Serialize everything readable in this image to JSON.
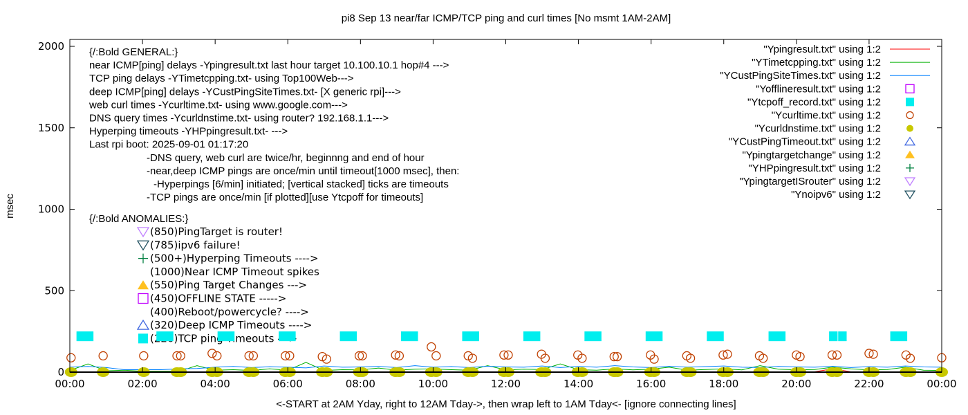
{
  "chart_data": {
    "type": "line",
    "title": "pi8 Sep 13  near/far ICMP/TCP ping and curl times [No msmt 1AM-2AM]",
    "xlabel": "<-START at 2AM Yday, right to 12AM Tday->, then wrap left to 1AM Tday<- [ignore connecting lines]",
    "ylabel": "msec",
    "xlim": [
      "00:00",
      "24:00"
    ],
    "ylim": [
      0,
      2050
    ],
    "x_ticks": [
      "00:00",
      "02:00",
      "04:00",
      "06:00",
      "08:00",
      "10:00",
      "12:00",
      "14:00",
      "16:00",
      "18:00",
      "20:00",
      "22:00",
      "00:00"
    ],
    "y_ticks": [
      0,
      500,
      1000,
      1500,
      2000
    ],
    "grid": false,
    "legend_placement": "top-right",
    "legend": [
      {
        "label": "\"Ypingresult.txt\" using 1:2",
        "style": "line",
        "color": "#ff0000"
      },
      {
        "label": "\"YTimetcpping.txt\" using 1:2",
        "style": "line",
        "color": "#00b000"
      },
      {
        "label": "\"YCustPingSiteTimes.txt\" using 1:2",
        "style": "line",
        "color": "#0080ff"
      },
      {
        "label": "\"Yofflineresult.txt\" using 1:2",
        "style": "open-square",
        "color": "#c000ff"
      },
      {
        "label": "\"Ytcpoff_record.txt\" using 1:2",
        "style": "filled-square",
        "color": "#00eeee"
      },
      {
        "label": "\"Ycurltime.txt\" using 1:2",
        "style": "open-circle",
        "color": "#c04000"
      },
      {
        "label": "\"Ycurldnstime.txt\" using 1:2",
        "style": "filled-circle",
        "color": "#c8c800"
      },
      {
        "label": "\"YCustPingTimeout.txt\" using 1:2",
        "style": "open-triangle-up",
        "color": "#4169e1"
      },
      {
        "label": "\"Ypingtargetchange\" using 1:2",
        "style": "filled-triangle-up",
        "color": "#ffc020"
      },
      {
        "label": "\"YHPpingresult.txt\" using 1:2",
        "style": "plus",
        "color": "#008040"
      },
      {
        "label": "\"YpingtargetISrouter\" using 1:2",
        "style": "open-triangle-down",
        "color": "#c080ff"
      },
      {
        "label": "\"Ynoipv6\" using 1:2",
        "style": "open-triangle-down",
        "color": "#205060"
      }
    ],
    "series": [
      {
        "name": "\"Ypingresult.txt\" using 1:2",
        "interval_minutes": 30,
        "start": "00:00",
        "values": [
          2,
          2,
          2,
          2,
          2,
          2,
          2,
          2,
          2,
          2,
          2,
          2,
          2,
          2,
          2,
          2,
          2,
          2,
          2,
          2,
          2,
          2,
          2,
          2,
          2,
          2,
          2,
          2,
          2,
          2,
          2,
          2,
          2,
          2,
          2,
          2,
          2,
          2,
          2,
          2,
          2,
          2,
          20,
          2,
          2,
          2,
          2,
          2,
          2
        ]
      },
      {
        "name": "\"YTimetcpping.txt\" using 1:2",
        "interval_minutes": 30,
        "start": "00:00",
        "values": [
          10,
          50,
          8,
          12,
          5,
          5,
          5,
          40,
          12,
          15,
          10,
          20,
          12,
          60,
          10,
          15,
          14,
          25,
          12,
          18,
          20,
          15,
          12,
          40,
          14,
          18,
          16,
          50,
          15,
          12,
          20,
          14,
          18,
          30,
          12,
          16,
          20,
          14,
          40,
          18,
          14,
          16,
          30,
          20,
          14,
          16,
          30,
          12,
          10
        ]
      },
      {
        "name": "\"YCustPingSiteTimes.txt\" using 1:2",
        "interval_minutes": 30,
        "start": "00:00",
        "values": [
          30,
          35,
          28,
          15,
          15,
          15,
          20,
          22,
          30,
          35,
          28,
          33,
          30,
          26,
          38,
          30,
          32,
          35,
          28,
          40,
          30,
          34,
          28,
          36,
          32,
          30,
          38,
          28,
          35,
          30,
          40,
          32,
          28,
          36,
          30,
          34,
          38,
          30,
          28,
          35,
          32,
          30,
          36,
          28,
          34,
          30,
          38,
          32,
          30
        ]
      },
      {
        "name": "\"Ytcpoff_record.txt\" using 1:2",
        "value": 220,
        "intervals": [
          [
            "00:11",
            "00:39"
          ],
          [
            "02:23",
            "02:51"
          ],
          [
            "04:04",
            "04:32"
          ],
          [
            "05:45",
            "06:13"
          ],
          [
            "07:26",
            "07:54"
          ],
          [
            "09:07",
            "09:35"
          ],
          [
            "10:48",
            "11:16"
          ],
          [
            "12:29",
            "12:57"
          ],
          [
            "14:10",
            "14:38"
          ],
          [
            "15:51",
            "16:19"
          ],
          [
            "17:32",
            "18:00"
          ],
          [
            "19:14",
            "19:42"
          ],
          [
            "20:54",
            "21:08"
          ],
          [
            "21:09",
            "21:23"
          ],
          [
            "22:35",
            "23:03"
          ]
        ]
      },
      {
        "name": "\"Ycurltime.txt\" using 1:2",
        "points": [
          [
            "00:02",
            88
          ],
          [
            "00:55",
            100
          ],
          [
            "02:02",
            100
          ],
          [
            "02:57",
            100
          ],
          [
            "03:03",
            100
          ],
          [
            "03:55",
            115
          ],
          [
            "04:03",
            100
          ],
          [
            "04:56",
            100
          ],
          [
            "05:03",
            100
          ],
          [
            "05:56",
            100
          ],
          [
            "06:03",
            100
          ],
          [
            "06:57",
            95
          ],
          [
            "07:04",
            80
          ],
          [
            "07:58",
            100
          ],
          [
            "08:03",
            100
          ],
          [
            "08:58",
            105
          ],
          [
            "09:04",
            100
          ],
          [
            "09:57",
            155
          ],
          [
            "10:05",
            100
          ],
          [
            "10:58",
            100
          ],
          [
            "11:05",
            85
          ],
          [
            "11:57",
            105
          ],
          [
            "12:04",
            105
          ],
          [
            "12:59",
            110
          ],
          [
            "13:05",
            85
          ],
          [
            "13:59",
            105
          ],
          [
            "14:06",
            85
          ],
          [
            "14:59",
            95
          ],
          [
            "15:04",
            95
          ],
          [
            "15:59",
            105
          ],
          [
            "16:05",
            80
          ],
          [
            "16:59",
            100
          ],
          [
            "17:05",
            85
          ],
          [
            "17:59",
            105
          ],
          [
            "18:06",
            110
          ],
          [
            "18:59",
            100
          ],
          [
            "19:05",
            85
          ],
          [
            "20:00",
            105
          ],
          [
            "20:06",
            95
          ],
          [
            "20:59",
            105
          ],
          [
            "21:07",
            105
          ],
          [
            "22:00",
            115
          ],
          [
            "22:07",
            110
          ],
          [
            "23:01",
            105
          ],
          [
            "23:08",
            85
          ],
          [
            "24:00",
            88
          ]
        ]
      },
      {
        "name": "\"Ycurldnstime.txt\" using 1:2",
        "points": [
          [
            "00:02",
            0
          ],
          [
            "00:55",
            0
          ],
          [
            "02:02",
            0
          ],
          [
            "02:57",
            0
          ],
          [
            "03:03",
            0
          ],
          [
            "03:55",
            0
          ],
          [
            "04:03",
            0
          ],
          [
            "04:56",
            0
          ],
          [
            "05:03",
            0
          ],
          [
            "05:56",
            0
          ],
          [
            "06:03",
            0
          ],
          [
            "06:57",
            0
          ],
          [
            "07:04",
            0
          ],
          [
            "07:58",
            0
          ],
          [
            "08:03",
            0
          ],
          [
            "08:58",
            0
          ],
          [
            "09:04",
            0
          ],
          [
            "09:57",
            0
          ],
          [
            "10:05",
            0
          ],
          [
            "10:58",
            0
          ],
          [
            "11:05",
            0
          ],
          [
            "11:57",
            0
          ],
          [
            "12:04",
            0
          ],
          [
            "12:59",
            0
          ],
          [
            "13:05",
            0
          ],
          [
            "13:59",
            0
          ],
          [
            "14:06",
            0
          ],
          [
            "14:59",
            0
          ],
          [
            "15:04",
            0
          ],
          [
            "15:59",
            0
          ],
          [
            "16:05",
            0
          ],
          [
            "16:59",
            0
          ],
          [
            "17:05",
            0
          ],
          [
            "17:59",
            0
          ],
          [
            "18:06",
            0
          ],
          [
            "18:59",
            0
          ],
          [
            "19:05",
            0
          ],
          [
            "20:00",
            0
          ],
          [
            "20:06",
            0
          ],
          [
            "20:59",
            0
          ],
          [
            "21:07",
            0
          ],
          [
            "22:00",
            0
          ],
          [
            "22:07",
            0
          ],
          [
            "23:01",
            0
          ],
          [
            "23:08",
            0
          ],
          [
            "24:00",
            0
          ]
        ]
      }
    ],
    "annotations": {
      "general": [
        "{/:Bold GENERAL:}",
        "near ICMP[ping] delays -Ypingresult.txt last hour target 10.100.10.1 hop#4 --->",
        "TCP ping delays -YTimetcpping.txt- using Top100Web--->",
        "deep ICMP[ping] delays -YCustPingSiteTimes.txt- [X generic rpi]--->",
        "web curl times -Ycurltime.txt- using www.google.com--->",
        "DNS query times -Ycurldnstime.txt- using router? 192.168.1.1--->",
        "Hyperping timeouts -YHPpingresult.txt- --->",
        "Last rpi boot: 2025-09-01 01:17:20",
        "-DNS query, web curl are twice/hr, beginnng and end of hour",
        "-near,deep ICMP pings are once/min until timeout[1000 msec], then:",
        "-Hyperpings [6/min] initiated; [vertical stacked] ticks are timeouts",
        "-TCP pings are once/min [if plotted][use Ytcpoff for timeouts]"
      ],
      "anomalies_header": "{/:Bold ANOMALIES:}",
      "anomalies": [
        {
          "text": "(850)PingTarget is router!",
          "marker": "open-triangle-down",
          "color": "#c080ff"
        },
        {
          "text": "(785)ipv6 failure!",
          "marker": "open-triangle-down",
          "color": "#205060"
        },
        {
          "text": "(500+)Hyperping Timeouts ---->",
          "marker": "plus",
          "color": "#008040"
        },
        {
          "text": "(1000)Near ICMP Timeout spikes",
          "marker": "none",
          "color": ""
        },
        {
          "text": "(550)Ping Target Changes --->",
          "marker": "filled-triangle-up",
          "color": "#ffc020"
        },
        {
          "text": "(450)OFFLINE STATE ----->",
          "marker": "open-square",
          "color": "#c000ff"
        },
        {
          "text": "(400)Reboot/powercycle? ---->",
          "marker": "none",
          "color": ""
        },
        {
          "text": "(320)Deep ICMP Timeouts ---->",
          "marker": "open-triangle-up",
          "color": "#4169e1"
        },
        {
          "text": "(220)TCP ping Timeouts --->",
          "marker": "filled-square",
          "color": "#00eeee"
        }
      ]
    }
  }
}
